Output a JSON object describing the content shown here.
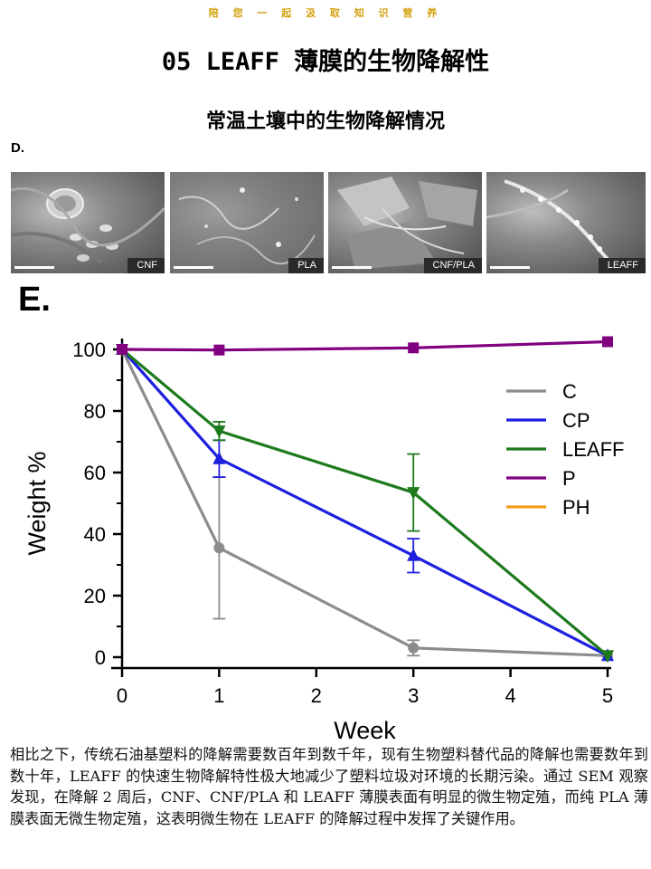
{
  "banner": "陪 您 一 起 汲 取 知 识 营 养",
  "title": "05 LEAFF 薄膜的生物降解性",
  "subtitle": "常温土壤中的生物降解情况",
  "panel_d": {
    "label": "D.",
    "images": [
      {
        "label": "CNF"
      },
      {
        "label": "PLA"
      },
      {
        "label": "CNF/PLA"
      },
      {
        "label": "LEAFF"
      }
    ]
  },
  "panel_e": {
    "label": "E."
  },
  "chart_data": {
    "type": "line",
    "xlabel": "Week",
    "ylabel": "Weight %",
    "xlim": [
      0,
      5
    ],
    "ylim": [
      0,
      100
    ],
    "xticks": [
      0,
      1,
      2,
      3,
      4,
      5
    ],
    "yticks": [
      0,
      20,
      40,
      60,
      80,
      100
    ],
    "legend_position": "right",
    "series": [
      {
        "name": "C",
        "color": "#8c8c8c",
        "marker": "circle",
        "x": [
          0,
          1,
          3,
          5
        ],
        "y": [
          100,
          35.5,
          3,
          0.5
        ],
        "err": [
          0,
          23,
          2.5,
          0
        ]
      },
      {
        "name": "CP",
        "color": "#1f1fe0",
        "marker": "triangle-up",
        "x": [
          0,
          1,
          3,
          5
        ],
        "y": [
          100,
          64.5,
          33,
          0.5
        ],
        "err": [
          0,
          6,
          5.5,
          0
        ]
      },
      {
        "name": "LEAFF",
        "color": "#1d7a1d",
        "marker": "triangle-down",
        "x": [
          0,
          1,
          3,
          5
        ],
        "y": [
          100,
          73.5,
          53.5,
          0.5
        ],
        "err": [
          0,
          3,
          12.5,
          0
        ]
      },
      {
        "name": "P",
        "color": "#800080",
        "marker": "square",
        "x": [
          0,
          1,
          3,
          5
        ],
        "y": [
          100,
          99.8,
          100.5,
          102.5
        ],
        "err": [
          0,
          0,
          0,
          0
        ]
      },
      {
        "name": "PH",
        "color": "#f39a1a",
        "marker": "none",
        "x": [],
        "y": [],
        "err": []
      }
    ]
  },
  "paragraph": "相比之下，传统石油基塑料的降解需要数百年到数千年，现有生物塑料替代品的降解也需要数年到数十年，LEAFF 的快速生物降解特性极大地减少了塑料垃圾对环境的长期污染。通过 SEM 观察发现，在降解 2 周后，CNF、CNF/PLA 和 LEAFF 薄膜表面有明显的微生物定殖，而纯 PLA 薄膜表面无微生物定殖，这表明微生物在 LEAFF 的降解过程中发挥了关键作用。"
}
